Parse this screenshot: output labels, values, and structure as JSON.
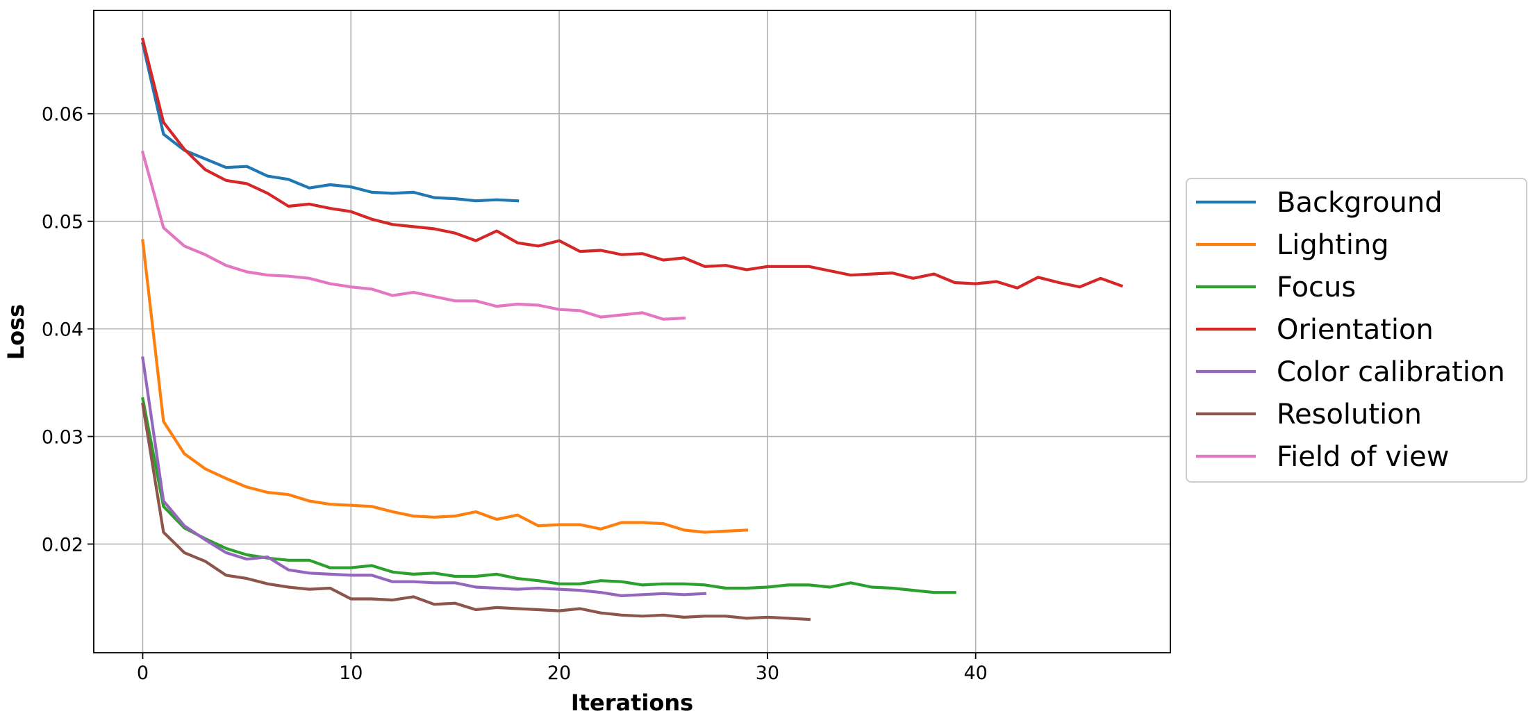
{
  "chart_data": {
    "type": "line",
    "xlabel": "Iterations",
    "ylabel": "Loss",
    "xlim": [
      -2.35,
      49.35
    ],
    "ylim": [
      0.0099,
      0.0696
    ],
    "xticks": [
      0,
      10,
      20,
      30,
      40
    ],
    "yticks": [
      0.02,
      0.03,
      0.04,
      0.05,
      0.06
    ],
    "xtick_labels": [
      "0",
      "10",
      "20",
      "30",
      "40"
    ],
    "ytick_labels": [
      "0.02",
      "0.03",
      "0.04",
      "0.05",
      "0.06"
    ],
    "grid": true,
    "legend_position": "outside-right",
    "series": [
      {
        "name": "Background",
        "color": "#1f77b4",
        "values": [
          0.0665,
          0.0581,
          0.0566,
          0.0558,
          0.055,
          0.0551,
          0.0542,
          0.0539,
          0.0531,
          0.0534,
          0.0532,
          0.0527,
          0.0526,
          0.0527,
          0.0522,
          0.0521,
          0.0519,
          0.052,
          0.0519
        ]
      },
      {
        "name": "Lighting",
        "color": "#ff7f0e",
        "values": [
          0.0482,
          0.0314,
          0.0284,
          0.027,
          0.0261,
          0.0253,
          0.0248,
          0.0246,
          0.024,
          0.0237,
          0.0236,
          0.0235,
          0.023,
          0.0226,
          0.0225,
          0.0226,
          0.023,
          0.0223,
          0.0227,
          0.0217,
          0.0218,
          0.0218,
          0.0214,
          0.022,
          0.022,
          0.0219,
          0.0213,
          0.0211,
          0.0212,
          0.0213
        ]
      },
      {
        "name": "Focus",
        "color": "#2ca02c",
        "values": [
          0.0335,
          0.0235,
          0.0215,
          0.0205,
          0.0196,
          0.019,
          0.0187,
          0.0185,
          0.0185,
          0.0178,
          0.0178,
          0.018,
          0.0174,
          0.0172,
          0.0173,
          0.017,
          0.017,
          0.0172,
          0.0168,
          0.0166,
          0.0163,
          0.0163,
          0.0166,
          0.0165,
          0.0162,
          0.0163,
          0.0163,
          0.0162,
          0.0159,
          0.0159,
          0.016,
          0.0162,
          0.0162,
          0.016,
          0.0164,
          0.016,
          0.0159,
          0.0157,
          0.0155,
          0.0155
        ]
      },
      {
        "name": "Orientation",
        "color": "#d62728",
        "values": [
          0.0669,
          0.0592,
          0.0567,
          0.0548,
          0.0538,
          0.0535,
          0.0526,
          0.0514,
          0.0516,
          0.0512,
          0.0509,
          0.0502,
          0.0497,
          0.0495,
          0.0493,
          0.0489,
          0.0482,
          0.0491,
          0.048,
          0.0477,
          0.0482,
          0.0472,
          0.0473,
          0.0469,
          0.047,
          0.0464,
          0.0466,
          0.0458,
          0.0459,
          0.0455,
          0.0458,
          0.0458,
          0.0458,
          0.0454,
          0.045,
          0.0451,
          0.0452,
          0.0447,
          0.0451,
          0.0443,
          0.0442,
          0.0444,
          0.0438,
          0.0448,
          0.0443,
          0.0439,
          0.0447,
          0.044
        ]
      },
      {
        "name": "Color calibration",
        "color": "#9467bd",
        "values": [
          0.0373,
          0.024,
          0.0217,
          0.0204,
          0.0192,
          0.0186,
          0.0188,
          0.0176,
          0.0173,
          0.0172,
          0.0171,
          0.0171,
          0.0165,
          0.0165,
          0.0164,
          0.0164,
          0.016,
          0.0159,
          0.0158,
          0.0159,
          0.0158,
          0.0157,
          0.0155,
          0.0152,
          0.0153,
          0.0154,
          0.0153,
          0.0154
        ]
      },
      {
        "name": "Resolution",
        "color": "#8c564b",
        "values": [
          0.033,
          0.0211,
          0.0192,
          0.0184,
          0.0171,
          0.0168,
          0.0163,
          0.016,
          0.0158,
          0.0159,
          0.0149,
          0.0149,
          0.0148,
          0.0151,
          0.0144,
          0.0145,
          0.0139,
          0.0141,
          0.014,
          0.0139,
          0.0138,
          0.014,
          0.0136,
          0.0134,
          0.0133,
          0.0134,
          0.0132,
          0.0133,
          0.0133,
          0.0131,
          0.0132,
          0.0131,
          0.013
        ]
      },
      {
        "name": "Field of view",
        "color": "#e377c2",
        "values": [
          0.0564,
          0.0494,
          0.0477,
          0.0469,
          0.0459,
          0.0453,
          0.045,
          0.0449,
          0.0447,
          0.0442,
          0.0439,
          0.0437,
          0.0431,
          0.0434,
          0.043,
          0.0426,
          0.0426,
          0.0421,
          0.0423,
          0.0422,
          0.0418,
          0.0417,
          0.0411,
          0.0413,
          0.0415,
          0.0409,
          0.041
        ]
      }
    ]
  }
}
